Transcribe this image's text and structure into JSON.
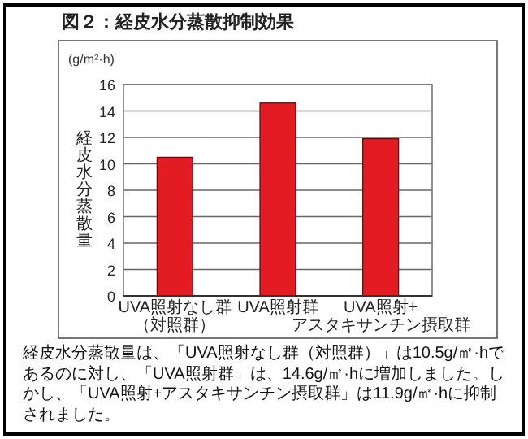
{
  "chart_data": {
    "type": "bar",
    "title": "図２：経皮水分蒸散抑制効果",
    "ylabel": "経皮水分蒸散量",
    "annotations": [
      "(g/m²·h)",
      "経皮水分蒸散量は、「UVA照射なし群（対照群）」は10.5g/㎡·hであるのに対し、「UVA照射群」は、14.6g/㎡·hに増加しました。しかし、「UVA照射+アスタキサンチン摂取群」は11.9g/㎡·hに抑制されました。"
    ],
    "categories": [
      "UVA照射なし群（対照群）",
      "UVA照射群",
      "UVA照射+アスタキサンチン摂取群"
    ],
    "values": [
      10.5,
      14.6,
      11.9
    ],
    "color": "#e31b23",
    "ylim": [
      0,
      16
    ],
    "yticks": [
      0,
      2,
      4,
      6,
      8,
      10,
      12,
      14,
      16
    ],
    "grid": "y"
  }
}
